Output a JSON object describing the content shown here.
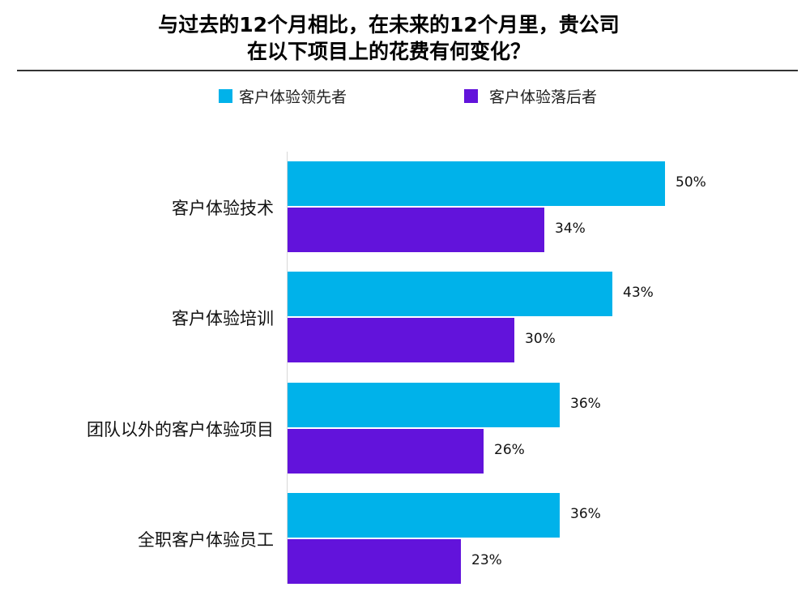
{
  "title": {
    "line1": "与过去的12个月相比，在未来的12个月里，贵公司",
    "line2": "在以下项目上的花费有何变化？"
  },
  "legend": [
    {
      "label": "客户体验领先者",
      "color": "#00b2ea"
    },
    {
      "label": "客户体验落后者",
      "color": "#6213db"
    }
  ],
  "chart_data": {
    "type": "bar",
    "orientation": "horizontal",
    "title": "与过去的12个月相比，在未来的12个月里，贵公司在以下项目上的花费有何变化？",
    "categories": [
      "客户体验技术",
      "客户体验培训",
      "团队以外的客户体验项目",
      "全职客户体验员工"
    ],
    "series": [
      {
        "name": "客户体验领先者",
        "color": "#00b2ea",
        "values": [
          50,
          43,
          36,
          36
        ],
        "labels": [
          "50%",
          "43%",
          "36%",
          "36%"
        ]
      },
      {
        "name": "客户体验落后者",
        "color": "#6213db",
        "values": [
          34,
          30,
          26,
          23
        ],
        "labels": [
          "34%",
          "30%",
          "26%",
          "23%"
        ]
      }
    ],
    "xlabel": "",
    "ylabel": "",
    "value_unit": "%",
    "xlim": [
      0,
      50
    ],
    "grid": false,
    "legend_position": "top",
    "data_labels": true
  }
}
